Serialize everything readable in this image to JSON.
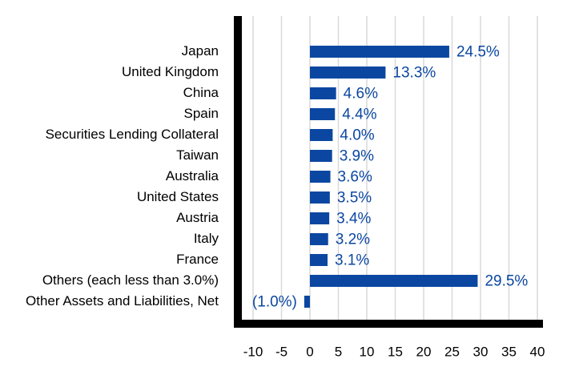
{
  "chart_data": {
    "type": "bar",
    "orientation": "horizontal",
    "categories": [
      "Japan",
      "United Kingdom",
      "China",
      "Spain",
      "Securities Lending Collateral",
      "Taiwan",
      "Australia",
      "United States",
      "Austria",
      "Italy",
      "France",
      "Others (each less than 3.0%)",
      "Other Assets and Liabilities, Net"
    ],
    "values": [
      24.5,
      13.3,
      4.6,
      4.4,
      4.0,
      3.9,
      3.6,
      3.5,
      3.4,
      3.2,
      3.1,
      29.5,
      -1.0
    ],
    "data_labels": [
      "24.5%",
      "13.3%",
      "4.6%",
      "4.4%",
      "4.0%",
      "3.9%",
      "3.6%",
      "3.5%",
      "3.4%",
      "3.2%",
      "3.1%",
      "29.5%",
      "(1.0%)"
    ],
    "xticks": [
      -10,
      -5,
      0,
      5,
      10,
      15,
      20,
      25,
      30,
      35,
      40
    ],
    "xtick_labels": [
      "-10",
      "-5",
      "0",
      "5",
      "10",
      "15",
      "20",
      "25",
      "30",
      "35",
      "40"
    ],
    "xlim": [
      -12,
      42
    ],
    "grid": true,
    "title": "",
    "xlabel": "",
    "ylabel": "",
    "colors": {
      "bar": "#0b47a1",
      "label": "#0b47a1",
      "grid": "#d9d9d9",
      "axis": "#000000"
    }
  }
}
